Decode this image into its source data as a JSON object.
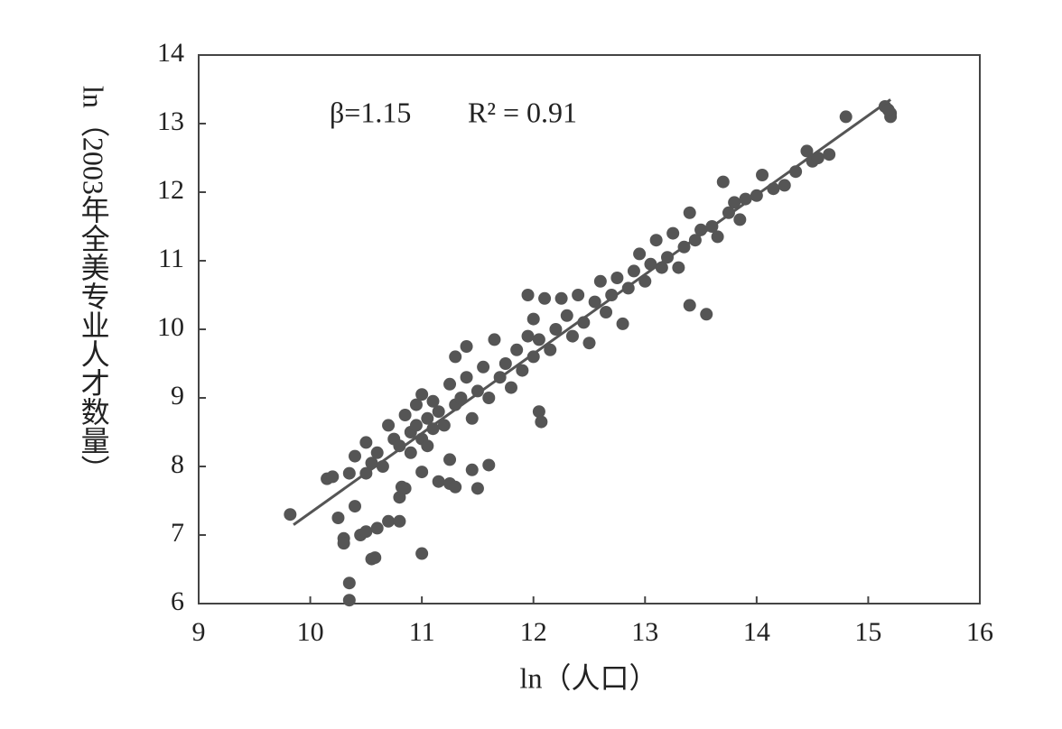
{
  "chart_data": {
    "type": "scatter",
    "annotations": [
      "β=1.15",
      "R² = 0.91"
    ],
    "x_label": "ln（人口）",
    "y_label": "ln（2003年全美专业人才数量）",
    "color": "#555555",
    "xlim": [
      9,
      16
    ],
    "ylim": [
      6,
      14
    ],
    "xticks": [
      9,
      10,
      11,
      12,
      13,
      14,
      15,
      16
    ],
    "yticks": [
      6,
      7,
      8,
      9,
      10,
      11,
      12,
      13,
      14
    ],
    "fit": {
      "x": [
        9.85,
        15.2
      ],
      "y": [
        7.15,
        13.35
      ]
    },
    "x": [
      9.82,
      10.15,
      10.25,
      10.3,
      10.3,
      10.35,
      10.35,
      10.4,
      10.45,
      10.5,
      10.55,
      10.58,
      10.6,
      10.7,
      10.8,
      10.8,
      10.82,
      10.85,
      11.0,
      11.0,
      11.15,
      11.25,
      11.3,
      11.25,
      11.45,
      11.5,
      11.6,
      12.05,
      12.07,
      13.4,
      13.55,
      12.8,
      10.35,
      10.4,
      10.5,
      10.55,
      10.6,
      10.65,
      10.7,
      10.75,
      10.8,
      10.85,
      10.9,
      10.9,
      10.95,
      10.95,
      11.0,
      11.0,
      11.05,
      11.05,
      11.1,
      11.1,
      11.15,
      11.2,
      11.25,
      11.3,
      11.3,
      11.35,
      11.4,
      11.4,
      11.45,
      11.5,
      11.55,
      11.6,
      11.65,
      11.7,
      11.75,
      11.8,
      11.85,
      11.9,
      11.95,
      12.0,
      12.0,
      12.05,
      12.1,
      12.15,
      12.2,
      12.25,
      12.3,
      12.35,
      12.4,
      12.45,
      12.5,
      12.55,
      12.6,
      12.65,
      12.7,
      12.75,
      12.85,
      12.9,
      12.95,
      13.0,
      13.05,
      13.1,
      13.15,
      13.2,
      13.25,
      13.3,
      13.35,
      13.4,
      13.45,
      13.5,
      13.6,
      13.65,
      13.7,
      13.75,
      13.8,
      13.85,
      13.9,
      14.0,
      14.05,
      14.15,
      14.25,
      14.35,
      14.45,
      14.5,
      14.55,
      14.65,
      14.8,
      15.15,
      15.2,
      15.2,
      15.18,
      11.95,
      10.2,
      10.5
    ],
    "y": [
      7.3,
      7.82,
      7.25,
      6.95,
      6.88,
      6.3,
      6.05,
      7.42,
      7.0,
      7.05,
      6.65,
      6.67,
      7.1,
      7.2,
      7.2,
      7.55,
      7.7,
      7.68,
      6.73,
      7.92,
      7.78,
      7.75,
      7.7,
      8.1,
      7.95,
      7.68,
      8.02,
      8.8,
      8.65,
      10.35,
      10.22,
      10.08,
      7.9,
      8.15,
      8.35,
      8.05,
      8.2,
      8.0,
      8.6,
      8.4,
      8.3,
      8.75,
      8.5,
      8.2,
      8.9,
      8.6,
      8.4,
      9.05,
      8.7,
      8.3,
      8.55,
      8.95,
      8.8,
      8.6,
      9.2,
      8.9,
      9.6,
      9.0,
      9.3,
      9.75,
      8.7,
      9.1,
      9.45,
      9.0,
      9.85,
      9.3,
      9.5,
      9.15,
      9.7,
      9.4,
      9.9,
      9.6,
      10.15,
      9.85,
      10.45,
      9.7,
      10.0,
      10.45,
      10.2,
      9.9,
      10.5,
      10.1,
      9.8,
      10.4,
      10.7,
      10.25,
      10.5,
      10.75,
      10.6,
      10.85,
      11.1,
      10.7,
      10.95,
      11.3,
      10.9,
      11.05,
      11.4,
      10.9,
      11.2,
      11.7,
      11.3,
      11.45,
      11.5,
      11.35,
      12.15,
      11.7,
      11.85,
      11.6,
      11.9,
      11.95,
      12.25,
      12.05,
      12.1,
      12.3,
      12.6,
      12.45,
      12.5,
      12.55,
      13.1,
      13.25,
      13.1,
      13.15,
      13.2,
      10.5,
      7.85,
      7.9
    ]
  }
}
